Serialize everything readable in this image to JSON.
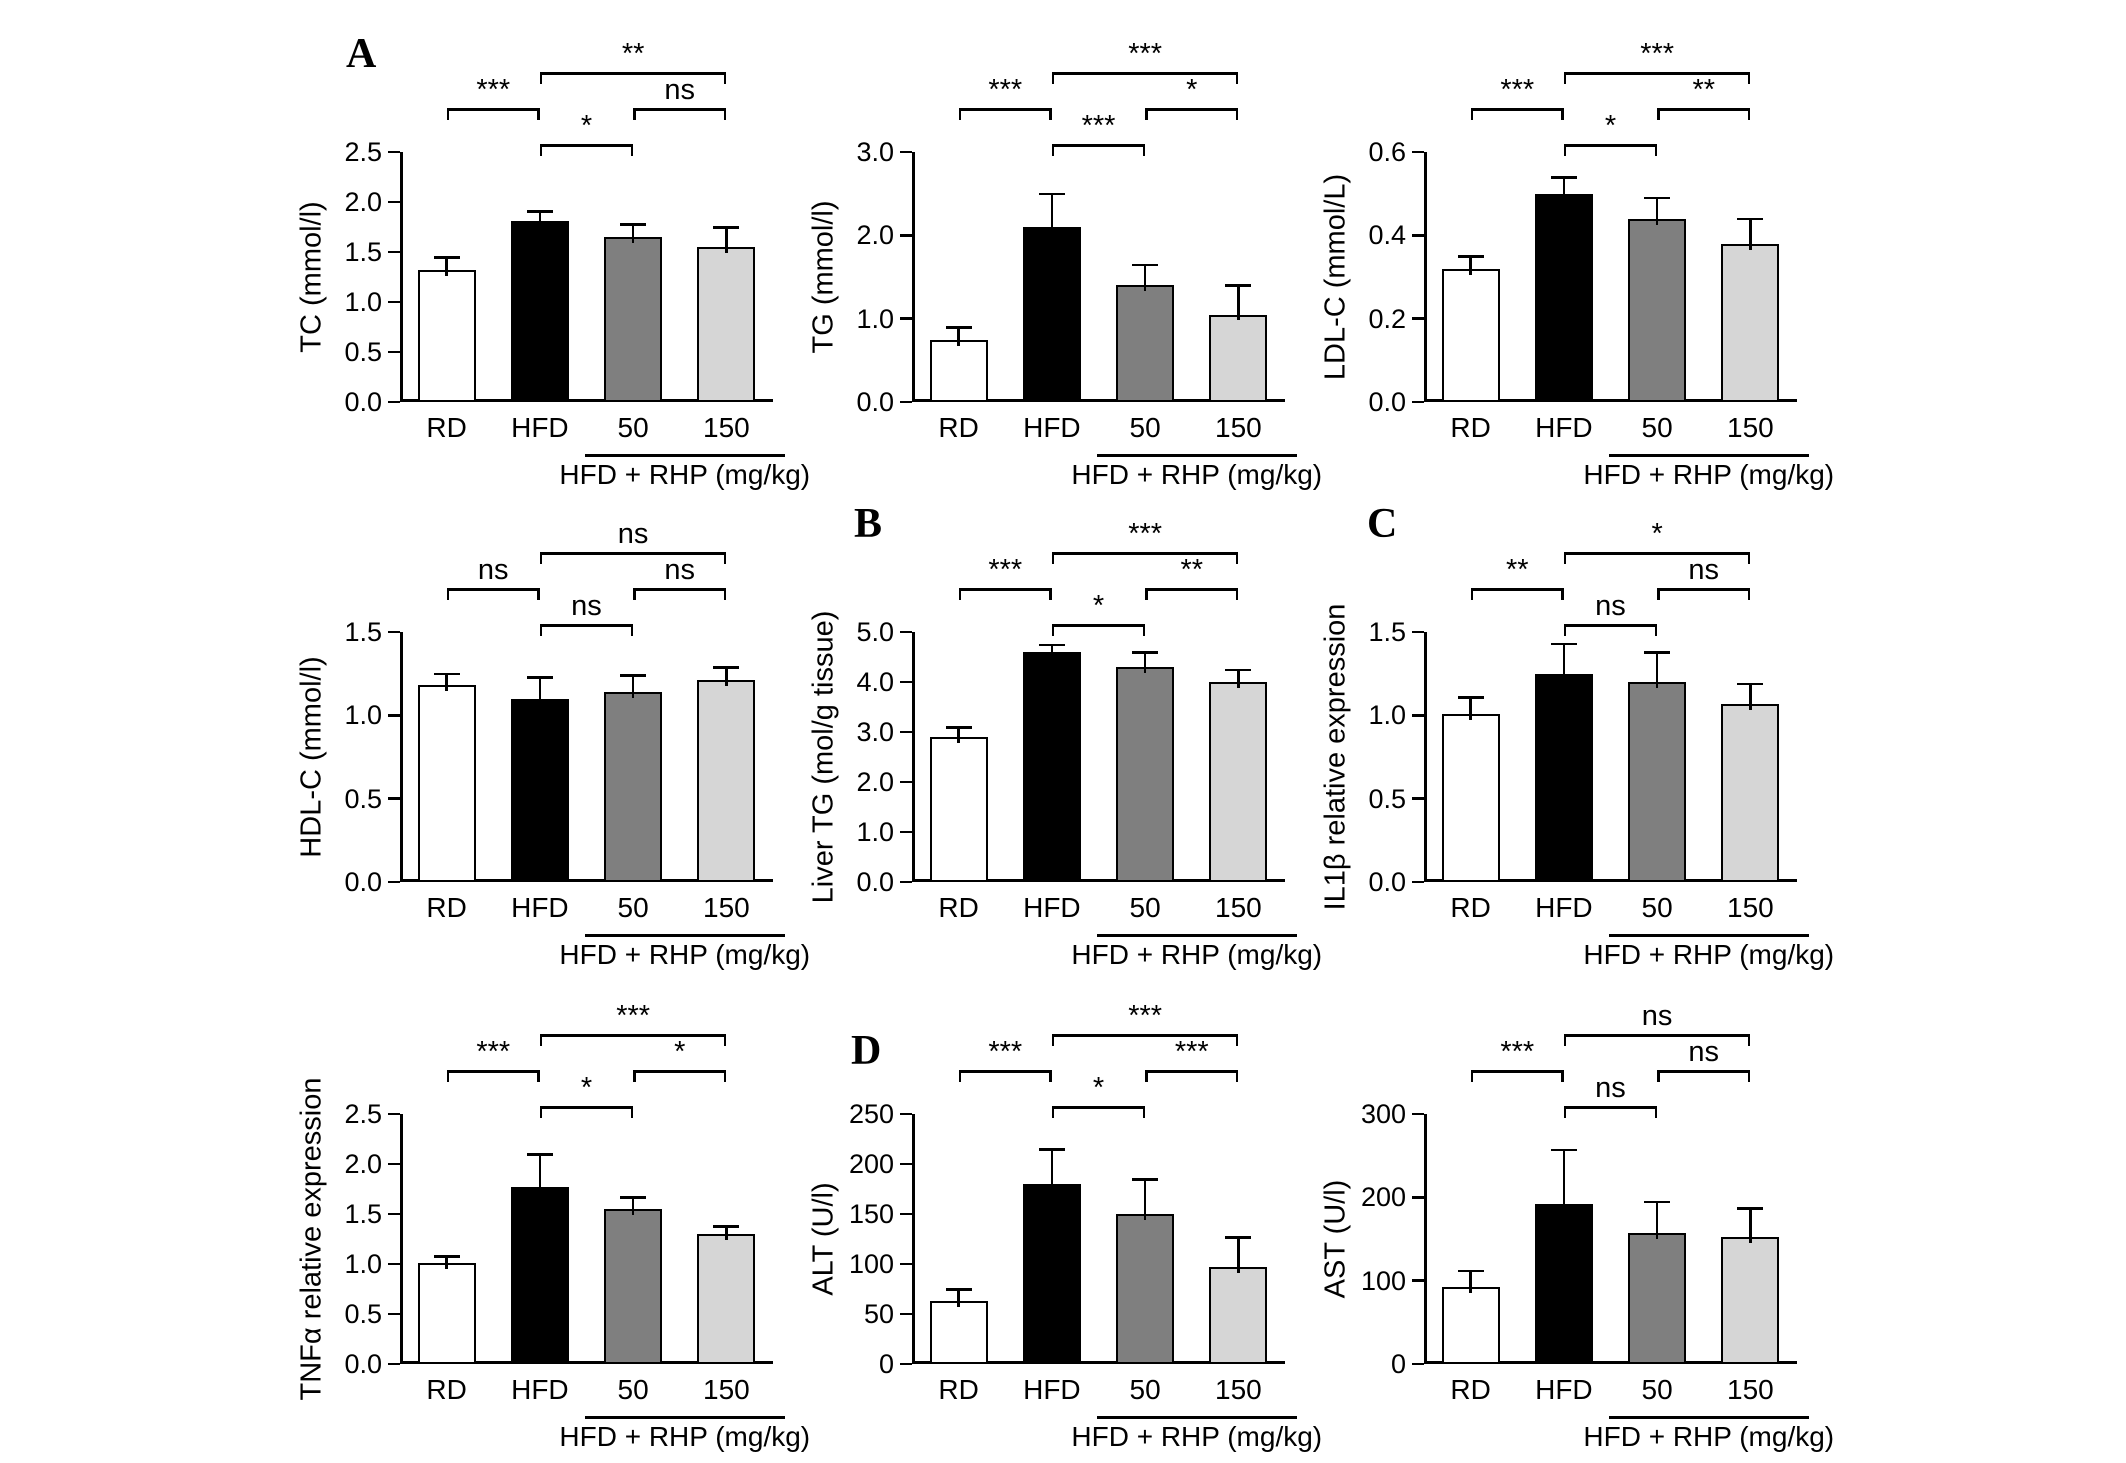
{
  "figure": {
    "background": "#ffffff",
    "axis_color": "#000000",
    "bar_colors": [
      "#ffffff",
      "#000000",
      "#7f7f7f",
      "#d6d6d6"
    ],
    "categories": [
      "RD",
      "HFD",
      "50",
      "150"
    ],
    "group_label": "HFD + RHP (mg/kg)",
    "panel_letters": [
      "A",
      "B",
      "C",
      "D"
    ]
  },
  "chart_data": [
    {
      "type": "bar",
      "panel": "A",
      "ylabel": "TC (mmol/l)",
      "categories": [
        "RD",
        "HFD",
        "50",
        "150"
      ],
      "values": [
        1.32,
        1.81,
        1.65,
        1.55
      ],
      "errors": [
        0.13,
        0.1,
        0.13,
        0.2
      ],
      "ylim": [
        0,
        2.5
      ],
      "yticks": [
        0,
        0.5,
        1.0,
        1.5,
        2.0,
        2.5
      ],
      "ytick_labels": [
        "0.0",
        "0.5",
        "1.0",
        "1.5",
        "2.0",
        "2.5"
      ],
      "group_label": "HFD + RHP (mg/kg)",
      "significance": [
        {
          "between": [
            "HFD",
            "150"
          ],
          "from": 1,
          "to": 3,
          "label": "**",
          "level": 2
        },
        {
          "between": [
            "RD",
            "HFD"
          ],
          "from": 0,
          "to": 1,
          "label": "***",
          "level": 1
        },
        {
          "between": [
            "50",
            "150"
          ],
          "from": 2,
          "to": 3,
          "label": "ns",
          "level": 1
        },
        {
          "between": [
            "HFD",
            "50"
          ],
          "from": 1,
          "to": 2,
          "label": "*",
          "level": 0
        }
      ]
    },
    {
      "type": "bar",
      "panel": "",
      "ylabel": "TG (mmol/l)",
      "categories": [
        "RD",
        "HFD",
        "50",
        "150"
      ],
      "values": [
        0.75,
        2.1,
        1.4,
        1.05
      ],
      "errors": [
        0.15,
        0.4,
        0.25,
        0.35
      ],
      "ylim": [
        0,
        3
      ],
      "yticks": [
        0,
        1,
        2,
        3
      ],
      "ytick_labels": [
        "0.0",
        "1.0",
        "2.0",
        "3.0"
      ],
      "group_label": "HFD + RHP (mg/kg)",
      "significance": [
        {
          "between": [
            "HFD",
            "150"
          ],
          "from": 1,
          "to": 3,
          "label": "***",
          "level": 2
        },
        {
          "between": [
            "RD",
            "HFD"
          ],
          "from": 0,
          "to": 1,
          "label": "***",
          "level": 1
        },
        {
          "between": [
            "50",
            "150"
          ],
          "from": 2,
          "to": 3,
          "label": "*",
          "level": 1
        },
        {
          "between": [
            "HFD",
            "50"
          ],
          "from": 1,
          "to": 2,
          "label": "***",
          "level": 0
        }
      ]
    },
    {
      "type": "bar",
      "panel": "",
      "ylabel": "LDL-C (mmol/L)",
      "categories": [
        "RD",
        "HFD",
        "50",
        "150"
      ],
      "values": [
        0.32,
        0.5,
        0.44,
        0.38
      ],
      "errors": [
        0.03,
        0.04,
        0.05,
        0.06
      ],
      "ylim": [
        0,
        0.6
      ],
      "yticks": [
        0,
        0.2,
        0.4,
        0.6
      ],
      "ytick_labels": [
        "0.0",
        "0.2",
        "0.4",
        "0.6"
      ],
      "group_label": "HFD + RHP (mg/kg)",
      "significance": [
        {
          "between": [
            "HFD",
            "150"
          ],
          "from": 1,
          "to": 3,
          "label": "***",
          "level": 2
        },
        {
          "between": [
            "RD",
            "HFD"
          ],
          "from": 0,
          "to": 1,
          "label": "***",
          "level": 1
        },
        {
          "between": [
            "50",
            "150"
          ],
          "from": 2,
          "to": 3,
          "label": "**",
          "level": 1
        },
        {
          "between": [
            "HFD",
            "50"
          ],
          "from": 1,
          "to": 2,
          "label": "*",
          "level": 0
        }
      ]
    },
    {
      "type": "bar",
      "panel": "",
      "ylabel": "HDL-C (mmol/l)",
      "categories": [
        "RD",
        "HFD",
        "50",
        "150"
      ],
      "values": [
        1.18,
        1.1,
        1.14,
        1.21
      ],
      "errors": [
        0.07,
        0.13,
        0.1,
        0.08
      ],
      "ylim": [
        0,
        1.5
      ],
      "yticks": [
        0,
        0.5,
        1.0,
        1.5
      ],
      "ytick_labels": [
        "0.0",
        "0.5",
        "1.0",
        "1.5"
      ],
      "group_label": "HFD + RHP (mg/kg)",
      "significance": [
        {
          "between": [
            "HFD",
            "150"
          ],
          "from": 1,
          "to": 3,
          "label": "ns",
          "level": 2
        },
        {
          "between": [
            "RD",
            "HFD"
          ],
          "from": 0,
          "to": 1,
          "label": "ns",
          "level": 1
        },
        {
          "between": [
            "50",
            "150"
          ],
          "from": 2,
          "to": 3,
          "label": "ns",
          "level": 1
        },
        {
          "between": [
            "HFD",
            "50"
          ],
          "from": 1,
          "to": 2,
          "label": "ns",
          "level": 0
        }
      ]
    },
    {
      "type": "bar",
      "panel": "B",
      "ylabel": "Liver TG (mol/g tissue)",
      "categories": [
        "RD",
        "HFD",
        "50",
        "150"
      ],
      "values": [
        2.9,
        4.6,
        4.3,
        4.0
      ],
      "errors": [
        0.2,
        0.15,
        0.3,
        0.25
      ],
      "ylim": [
        0,
        5
      ],
      "yticks": [
        0,
        1,
        2,
        3,
        4,
        5
      ],
      "ytick_labels": [
        "0.0",
        "1.0",
        "2.0",
        "3.0",
        "4.0",
        "5.0"
      ],
      "group_label": "HFD + RHP (mg/kg)",
      "significance": [
        {
          "between": [
            "HFD",
            "150"
          ],
          "from": 1,
          "to": 3,
          "label": "***",
          "level": 2
        },
        {
          "between": [
            "RD",
            "HFD"
          ],
          "from": 0,
          "to": 1,
          "label": "***",
          "level": 1
        },
        {
          "between": [
            "50",
            "150"
          ],
          "from": 2,
          "to": 3,
          "label": "**",
          "level": 1
        },
        {
          "between": [
            "HFD",
            "50"
          ],
          "from": 1,
          "to": 2,
          "label": "*",
          "level": 0
        }
      ]
    },
    {
      "type": "bar",
      "panel": "C",
      "ylabel": "IL1β  relative expression",
      "categories": [
        "RD",
        "HFD",
        "50",
        "150"
      ],
      "values": [
        1.01,
        1.25,
        1.2,
        1.07
      ],
      "errors": [
        0.1,
        0.18,
        0.18,
        0.12
      ],
      "ylim": [
        0,
        1.5
      ],
      "yticks": [
        0,
        0.5,
        1.0,
        1.5
      ],
      "ytick_labels": [
        "0.0",
        "0.5",
        "1.0",
        "1.5"
      ],
      "group_label": "HFD + RHP (mg/kg)",
      "significance": [
        {
          "between": [
            "HFD",
            "150"
          ],
          "from": 1,
          "to": 3,
          "label": "*",
          "level": 2
        },
        {
          "between": [
            "RD",
            "HFD"
          ],
          "from": 0,
          "to": 1,
          "label": "**",
          "level": 1
        },
        {
          "between": [
            "50",
            "150"
          ],
          "from": 2,
          "to": 3,
          "label": "ns",
          "level": 1
        },
        {
          "between": [
            "HFD",
            "50"
          ],
          "from": 1,
          "to": 2,
          "label": "ns",
          "level": 0
        }
      ]
    },
    {
      "type": "bar",
      "panel": "",
      "ylabel": "TNFα  relative expression",
      "categories": [
        "RD",
        "HFD",
        "50",
        "150"
      ],
      "values": [
        1.01,
        1.77,
        1.55,
        1.3
      ],
      "errors": [
        0.07,
        0.33,
        0.12,
        0.08
      ],
      "ylim": [
        0,
        2.5
      ],
      "yticks": [
        0,
        0.5,
        1.0,
        1.5,
        2.0,
        2.5
      ],
      "ytick_labels": [
        "0.0",
        "0.5",
        "1.0",
        "1.5",
        "2.0",
        "2.5"
      ],
      "group_label": "HFD + RHP (mg/kg)",
      "significance": [
        {
          "between": [
            "HFD",
            "150"
          ],
          "from": 1,
          "to": 3,
          "label": "***",
          "level": 2
        },
        {
          "between": [
            "RD",
            "HFD"
          ],
          "from": 0,
          "to": 1,
          "label": "***",
          "level": 1
        },
        {
          "between": [
            "50",
            "150"
          ],
          "from": 2,
          "to": 3,
          "label": "*",
          "level": 1
        },
        {
          "between": [
            "HFD",
            "50"
          ],
          "from": 1,
          "to": 2,
          "label": "*",
          "level": 0
        }
      ]
    },
    {
      "type": "bar",
      "panel": "D",
      "ylabel": "ALT (U/l)",
      "categories": [
        "RD",
        "HFD",
        "50",
        "150"
      ],
      "values": [
        63,
        180,
        150,
        97
      ],
      "errors": [
        12,
        35,
        35,
        30
      ],
      "ylim": [
        0,
        250
      ],
      "yticks": [
        0,
        50,
        100,
        150,
        200,
        250
      ],
      "ytick_labels": [
        "0",
        "50",
        "100",
        "150",
        "200",
        "250"
      ],
      "group_label": "HFD + RHP (mg/kg)",
      "significance": [
        {
          "between": [
            "HFD",
            "150"
          ],
          "from": 1,
          "to": 3,
          "label": "***",
          "level": 2
        },
        {
          "between": [
            "RD",
            "HFD"
          ],
          "from": 0,
          "to": 1,
          "label": "***",
          "level": 1
        },
        {
          "between": [
            "50",
            "150"
          ],
          "from": 2,
          "to": 3,
          "label": "***",
          "level": 1
        },
        {
          "between": [
            "HFD",
            "50"
          ],
          "from": 1,
          "to": 2,
          "label": "*",
          "level": 0
        }
      ]
    },
    {
      "type": "bar",
      "panel": "",
      "ylabel": "AST (U/l)",
      "categories": [
        "RD",
        "HFD",
        "50",
        "150"
      ],
      "values": [
        92,
        192,
        157,
        152
      ],
      "errors": [
        20,
        65,
        38,
        35
      ],
      "ylim": [
        0,
        300
      ],
      "yticks": [
        0,
        100,
        200,
        300
      ],
      "ytick_labels": [
        "0",
        "100",
        "200",
        "300"
      ],
      "group_label": "HFD + RHP (mg/kg)",
      "significance": [
        {
          "between": [
            "HFD",
            "150"
          ],
          "from": 1,
          "to": 3,
          "label": "ns",
          "level": 2
        },
        {
          "between": [
            "RD",
            "HFD"
          ],
          "from": 0,
          "to": 1,
          "label": "***",
          "level": 1
        },
        {
          "between": [
            "50",
            "150"
          ],
          "from": 2,
          "to": 3,
          "label": "ns",
          "level": 1
        },
        {
          "between": [
            "HFD",
            "50"
          ],
          "from": 1,
          "to": 2,
          "label": "ns",
          "level": 0
        }
      ]
    }
  ]
}
